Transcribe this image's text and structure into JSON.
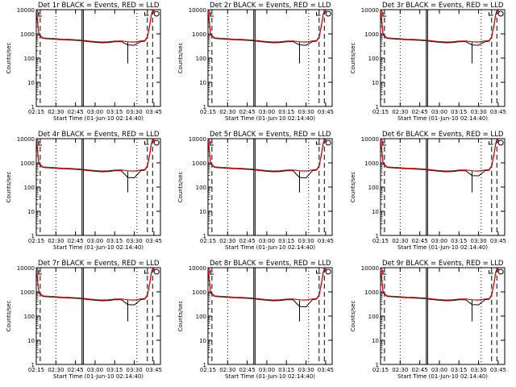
{
  "chart_data": {
    "type": "line",
    "layout_grid": {
      "rows": 3,
      "cols": 3
    },
    "yscale": "log",
    "ylim": [
      1,
      10000
    ],
    "yticks": [
      1,
      10,
      100,
      1000,
      10000
    ],
    "ytick_labels": [
      "1",
      "10",
      "100",
      "1000",
      "10000"
    ],
    "xlim": [
      "02:15",
      "03:50"
    ],
    "xticks": [
      "02:15",
      "02:30",
      "02:45",
      "03:00",
      "03:15",
      "03:30",
      "03:45"
    ],
    "xlabel": "Start Time (01-Jun-10 02:14:40)",
    "ylabel": "Counts/sec",
    "series_colors": {
      "events": "#000000",
      "lld": "#e00000"
    },
    "vertical_markers": {
      "dotted": [
        "02:30",
        "03:32"
      ],
      "dashed": [
        "02:18",
        "03:40",
        "03:44"
      ],
      "solid_thin": [
        "02:51"
      ],
      "solid_double": [
        "02:50",
        "02:51"
      ]
    },
    "panels": [
      {
        "title": "Det 1r BLACK = Events, RED = LLD",
        "x": [
          "02:15",
          "02:16",
          "02:17",
          "02:20",
          "02:25",
          "02:30",
          "02:35",
          "02:40",
          "02:45",
          "02:50",
          "02:55",
          "03:00",
          "03:05",
          "03:10",
          "03:15",
          "03:20",
          "03:25",
          "03:30",
          "03:35",
          "03:38",
          "03:40",
          "03:42",
          "03:43",
          "03:44",
          "03:45"
        ],
        "events": [
          9000,
          3000,
          900,
          650,
          620,
          600,
          570,
          560,
          540,
          520,
          480,
          450,
          430,
          440,
          470,
          480,
          350,
          340,
          480,
          500,
          700,
          2500,
          6000,
          9000,
          9500
        ],
        "lld": [
          9500,
          3200,
          950,
          680,
          650,
          630,
          600,
          590,
          570,
          550,
          510,
          480,
          460,
          470,
          500,
          510,
          470,
          460,
          510,
          530,
          750,
          2600,
          6200,
          9300,
          9800
        ]
      },
      {
        "title": "Det 2r BLACK = Events, RED = LLD",
        "x": [
          "02:15",
          "02:16",
          "02:17",
          "02:20",
          "02:25",
          "02:30",
          "02:35",
          "02:40",
          "02:45",
          "02:50",
          "02:55",
          "03:00",
          "03:05",
          "03:10",
          "03:15",
          "03:20",
          "03:25",
          "03:30",
          "03:35",
          "03:38",
          "03:40",
          "03:42",
          "03:43",
          "03:44",
          "03:45"
        ],
        "events": [
          9000,
          3000,
          900,
          650,
          620,
          600,
          570,
          560,
          540,
          520,
          480,
          450,
          430,
          440,
          470,
          480,
          350,
          340,
          480,
          500,
          700,
          2500,
          6000,
          9000,
          9500
        ],
        "lld": [
          9500,
          3200,
          950,
          680,
          650,
          630,
          600,
          590,
          570,
          550,
          510,
          480,
          460,
          470,
          500,
          510,
          470,
          460,
          510,
          530,
          750,
          2600,
          6200,
          9300,
          9800
        ]
      },
      {
        "title": "Det 3r BLACK = Events, RED = LLD",
        "x": [
          "02:15",
          "02:16",
          "02:17",
          "02:20",
          "02:25",
          "02:30",
          "02:35",
          "02:40",
          "02:45",
          "02:50",
          "02:55",
          "03:00",
          "03:05",
          "03:10",
          "03:15",
          "03:20",
          "03:25",
          "03:30",
          "03:35",
          "03:38",
          "03:40",
          "03:42",
          "03:43",
          "03:44",
          "03:45"
        ],
        "events": [
          9000,
          3000,
          900,
          650,
          620,
          600,
          570,
          560,
          540,
          520,
          480,
          450,
          430,
          440,
          470,
          480,
          350,
          340,
          480,
          500,
          700,
          2500,
          6000,
          9000,
          9500
        ],
        "lld": [
          9500,
          3200,
          950,
          680,
          650,
          630,
          600,
          590,
          570,
          550,
          510,
          480,
          460,
          470,
          500,
          510,
          470,
          460,
          510,
          530,
          750,
          2600,
          6200,
          9300,
          9800
        ]
      },
      {
        "title": "Det 4r BLACK = Events, RED = LLD",
        "x": [
          "02:15",
          "02:16",
          "02:17",
          "02:20",
          "02:25",
          "02:30",
          "02:35",
          "02:40",
          "02:45",
          "02:50",
          "02:55",
          "03:00",
          "03:05",
          "03:10",
          "03:15",
          "03:20",
          "03:25",
          "03:30",
          "03:35",
          "03:38",
          "03:40",
          "03:42",
          "03:43",
          "03:44",
          "03:45"
        ],
        "events": [
          9000,
          3000,
          900,
          650,
          620,
          600,
          570,
          560,
          540,
          520,
          480,
          450,
          430,
          440,
          470,
          480,
          250,
          240,
          480,
          500,
          700,
          2500,
          6000,
          9000,
          9500
        ],
        "lld": [
          9500,
          3200,
          950,
          680,
          650,
          630,
          600,
          590,
          570,
          550,
          510,
          480,
          460,
          470,
          500,
          510,
          470,
          460,
          510,
          530,
          750,
          2600,
          6200,
          9300,
          9800
        ]
      },
      {
        "title": "Det 5r BLACK = Events, RED = LLD",
        "x": [
          "02:15",
          "02:16",
          "02:17",
          "02:20",
          "02:25",
          "02:30",
          "02:35",
          "02:40",
          "02:45",
          "02:50",
          "02:55",
          "03:00",
          "03:05",
          "03:10",
          "03:15",
          "03:20",
          "03:25",
          "03:30",
          "03:35",
          "03:38",
          "03:40",
          "03:42",
          "03:43",
          "03:44",
          "03:45"
        ],
        "events": [
          9000,
          3000,
          900,
          650,
          620,
          600,
          570,
          560,
          540,
          520,
          480,
          450,
          430,
          440,
          470,
          480,
          250,
          240,
          480,
          500,
          700,
          2500,
          6000,
          9000,
          9500
        ],
        "lld": [
          9500,
          3200,
          950,
          680,
          650,
          630,
          600,
          590,
          570,
          550,
          510,
          480,
          460,
          470,
          500,
          510,
          470,
          460,
          510,
          530,
          750,
          2600,
          6200,
          9300,
          9800
        ]
      },
      {
        "title": "Det 6r BLACK = Events, RED = LLD",
        "x": [
          "02:15",
          "02:16",
          "02:17",
          "02:20",
          "02:25",
          "02:30",
          "02:35",
          "02:40",
          "02:45",
          "02:50",
          "02:55",
          "03:00",
          "03:05",
          "03:10",
          "03:15",
          "03:20",
          "03:25",
          "03:30",
          "03:35",
          "03:38",
          "03:40",
          "03:42",
          "03:43",
          "03:44",
          "03:45"
        ],
        "events": [
          9000,
          3000,
          900,
          650,
          620,
          600,
          570,
          560,
          540,
          520,
          480,
          450,
          430,
          440,
          470,
          480,
          300,
          290,
          480,
          500,
          700,
          2500,
          6000,
          9000,
          9500
        ],
        "lld": [
          9500,
          3200,
          950,
          680,
          650,
          630,
          600,
          590,
          570,
          550,
          510,
          480,
          460,
          470,
          500,
          510,
          470,
          460,
          510,
          530,
          750,
          2600,
          6200,
          9300,
          9800
        ]
      },
      {
        "title": "Det 7r BLACK = Events, RED = LLD",
        "x": [
          "02:15",
          "02:16",
          "02:17",
          "02:20",
          "02:25",
          "02:30",
          "02:35",
          "02:40",
          "02:45",
          "02:50",
          "02:55",
          "03:00",
          "03:05",
          "03:10",
          "03:15",
          "03:20",
          "03:25",
          "03:30",
          "03:35",
          "03:38",
          "03:40",
          "03:42",
          "03:43",
          "03:44",
          "03:45"
        ],
        "events": [
          9000,
          3000,
          900,
          650,
          620,
          600,
          570,
          560,
          540,
          520,
          480,
          450,
          430,
          440,
          470,
          480,
          300,
          290,
          480,
          500,
          700,
          2500,
          6000,
          9000,
          9500
        ],
        "lld": [
          9500,
          3200,
          950,
          680,
          650,
          630,
          600,
          590,
          570,
          550,
          510,
          480,
          460,
          470,
          500,
          510,
          470,
          460,
          510,
          530,
          750,
          2600,
          6200,
          9300,
          9800
        ]
      },
      {
        "title": "Det 8r BLACK = Events, RED = LLD",
        "x": [
          "02:15",
          "02:16",
          "02:17",
          "02:20",
          "02:25",
          "02:30",
          "02:35",
          "02:40",
          "02:45",
          "02:50",
          "02:55",
          "03:00",
          "03:05",
          "03:10",
          "03:15",
          "03:20",
          "03:25",
          "03:30",
          "03:35",
          "03:38",
          "03:40",
          "03:42",
          "03:43",
          "03:44",
          "03:45"
        ],
        "events": [
          9000,
          3000,
          900,
          650,
          620,
          600,
          570,
          560,
          540,
          520,
          480,
          450,
          430,
          440,
          470,
          480,
          250,
          240,
          480,
          500,
          700,
          2500,
          6000,
          9000,
          9500
        ],
        "lld": [
          9500,
          3200,
          950,
          680,
          650,
          630,
          600,
          590,
          570,
          550,
          510,
          480,
          460,
          470,
          500,
          510,
          470,
          460,
          510,
          530,
          750,
          2600,
          6200,
          9300,
          9800
        ]
      },
      {
        "title": "Det 9r BLACK = Events, RED = LLD",
        "x": [
          "02:15",
          "02:16",
          "02:17",
          "02:20",
          "02:25",
          "02:30",
          "02:35",
          "02:40",
          "02:45",
          "02:50",
          "02:55",
          "03:00",
          "03:05",
          "03:10",
          "03:15",
          "03:20",
          "03:25",
          "03:30",
          "03:35",
          "03:38",
          "03:40",
          "03:42",
          "03:43",
          "03:44",
          "03:45"
        ],
        "events": [
          9000,
          3000,
          900,
          650,
          620,
          600,
          570,
          560,
          540,
          520,
          480,
          450,
          430,
          440,
          470,
          480,
          300,
          290,
          480,
          500,
          700,
          2500,
          6000,
          9000,
          9500
        ],
        "lld": [
          9500,
          3200,
          950,
          680,
          650,
          630,
          600,
          590,
          570,
          550,
          510,
          480,
          460,
          470,
          500,
          510,
          470,
          460,
          510,
          530,
          750,
          2600,
          6200,
          9300,
          9800
        ]
      }
    ]
  }
}
